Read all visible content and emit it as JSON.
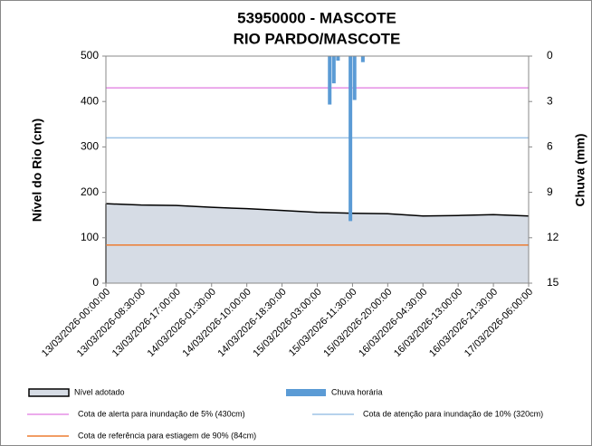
{
  "chart_data": {
    "type": "line",
    "title": "53950000 - MASCOTE",
    "subtitle": "RIO PARDO/MASCOTE",
    "ylabel": "Nível do Rio (cm)",
    "y2label": "Chuva (mm)",
    "xlim": [
      "13/03/2026-00:00:00",
      "17/03/2026-06:00:00"
    ],
    "xticks": [
      "13/03/2026-00:00:00",
      "13/03/2026-08:30:00",
      "13/03/2026-17:00:00",
      "14/03/2026-01:30:00",
      "14/03/2026-10:00:00",
      "14/03/2026-18:30:00",
      "15/03/2026-03:00:00",
      "15/03/2026-11:30:00",
      "15/03/2026-20:00:00",
      "16/03/2026-04:30:00",
      "16/03/2026-13:00:00",
      "16/03/2026-21:30:00",
      "17/03/2026-06:00:00"
    ],
    "ylim": [
      0,
      500
    ],
    "yticks": [
      0,
      100,
      200,
      300,
      400,
      500
    ],
    "y2lim": [
      0,
      15
    ],
    "y2ticks": [
      0,
      3,
      6,
      9,
      12,
      15
    ],
    "y2_inverted": true,
    "series": [
      {
        "name": "Nível adotado",
        "type": "area",
        "color": "#d6dce5",
        "x": [
          "13/03/2026-00:00:00",
          "13/03/2026-08:30:00",
          "13/03/2026-17:00:00",
          "14/03/2026-01:30:00",
          "14/03/2026-10:00:00",
          "14/03/2026-18:30:00",
          "15/03/2026-03:00:00",
          "15/03/2026-11:30:00",
          "15/03/2026-20:00:00",
          "16/03/2026-04:30:00",
          "16/03/2026-13:00:00",
          "16/03/2026-21:30:00",
          "17/03/2026-06:00:00"
        ],
        "values": [
          175,
          172,
          171,
          167,
          164,
          160,
          156,
          154,
          153,
          148,
          149,
          151,
          148
        ]
      },
      {
        "name": "Chuva horária",
        "type": "bar",
        "axis": "y2",
        "color": "#5b9bd5",
        "x": [
          "15/03/2026-06:00:00",
          "15/03/2026-07:00:00",
          "15/03/2026-08:00:00",
          "15/03/2026-11:00:00",
          "15/03/2026-12:00:00",
          "15/03/2026-14:00:00"
        ],
        "values": [
          3.2,
          1.8,
          0.3,
          10.9,
          2.9,
          0.4
        ]
      }
    ],
    "reference_lines": [
      {
        "name": "Cota de alerta para inundação de 5% (430cm)",
        "value": 430,
        "color": "#e58fe5"
      },
      {
        "name": "Cota de atenção para inundação de 10% (320cm)",
        "value": 320,
        "color": "#9dc3e6"
      },
      {
        "name": "Cota de referência para estiagem de 90% (84cm)",
        "value": 84,
        "color": "#ed7d31"
      }
    ]
  }
}
